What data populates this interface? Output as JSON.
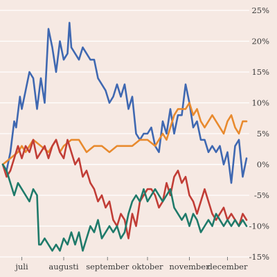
{
  "chart_data": {
    "type": "line",
    "title": "",
    "xlabel": "",
    "ylabel": "",
    "ylim": [
      -15,
      25
    ],
    "y_ticks": [
      -15,
      -10,
      -5,
      0,
      5,
      10,
      15,
      20,
      25
    ],
    "y_tick_labels": [
      "-15%",
      "-10%",
      "-5%",
      "0%",
      "5%",
      "10%",
      "15%",
      "20%",
      "25%"
    ],
    "x_range": [
      0,
      128
    ],
    "x_ticks": [
      {
        "at": 10,
        "label": "juli"
      },
      {
        "at": 32,
        "label": "augusti"
      },
      {
        "at": 55,
        "label": "september"
      },
      {
        "at": 76,
        "label": "oktober"
      },
      {
        "at": 98,
        "label": "november"
      },
      {
        "at": 118,
        "label": "december"
      }
    ],
    "grid": true,
    "legend": "none",
    "series": [
      {
        "color": "#3f68b1",
        "x": [
          0,
          2,
          4,
          6,
          7,
          9,
          10,
          12,
          14,
          16,
          18,
          20,
          22,
          24,
          26,
          28,
          30,
          32,
          34,
          35,
          36,
          38,
          40,
          42,
          44,
          46,
          48,
          50,
          52,
          54,
          56,
          58,
          60,
          62,
          64,
          66,
          68,
          70,
          72,
          74,
          76,
          78,
          80,
          82,
          84,
          86,
          88,
          90,
          92,
          94,
          96,
          98,
          100,
          102,
          104,
          106,
          108,
          110,
          112,
          114,
          116,
          118,
          120,
          122,
          124,
          126,
          128
        ],
        "values": [
          0,
          -1,
          2,
          7,
          6,
          11,
          9,
          12,
          15,
          14,
          9,
          14,
          10,
          22,
          19,
          15,
          20,
          17,
          18,
          23,
          19,
          18,
          17,
          19,
          18,
          17,
          17,
          14,
          13,
          12,
          10,
          11,
          13,
          11,
          13,
          9,
          11,
          5,
          4,
          5,
          5,
          6,
          3,
          2,
          7,
          5,
          9,
          5,
          8,
          8,
          13,
          10,
          6,
          7,
          4,
          4,
          2,
          3,
          2,
          3,
          0,
          2,
          -3,
          3,
          4,
          -2,
          1
        ]
      },
      {
        "color": "#e88a2e",
        "x": [
          0,
          4,
          8,
          10,
          12,
          16,
          20,
          24,
          28,
          30,
          32,
          36,
          40,
          44,
          48,
          52,
          56,
          60,
          64,
          68,
          72,
          76,
          80,
          84,
          86,
          88,
          90,
          92,
          96,
          98,
          100,
          102,
          104,
          106,
          108,
          110,
          112,
          114,
          116,
          118,
          120,
          122,
          124,
          126,
          128
        ],
        "values": [
          0,
          1,
          2,
          3,
          2,
          4,
          3,
          2,
          4,
          2,
          3,
          4,
          4,
          2,
          3,
          3,
          2,
          3,
          3,
          3,
          4,
          4,
          3,
          5,
          4,
          6,
          8,
          9,
          9,
          10,
          8,
          9,
          7,
          6,
          7,
          8,
          7,
          6,
          5,
          7,
          8,
          6,
          5,
          7,
          7
        ]
      },
      {
        "color": "#c13d36",
        "x": [
          0,
          2,
          4,
          6,
          8,
          10,
          12,
          14,
          16,
          18,
          20,
          22,
          24,
          26,
          28,
          30,
          32,
          34,
          36,
          38,
          40,
          42,
          44,
          46,
          48,
          50,
          52,
          54,
          56,
          58,
          60,
          62,
          64,
          66,
          68,
          70,
          72,
          74,
          76,
          78,
          80,
          82,
          84,
          86,
          88,
          90,
          92,
          94,
          96,
          98,
          100,
          102,
          104,
          106,
          108,
          110,
          112,
          114,
          116,
          118,
          120,
          122,
          124,
          126,
          128
        ],
        "values": [
          0,
          -2,
          -1,
          1,
          3,
          1,
          3,
          2,
          4,
          1,
          2,
          3,
          1,
          3,
          4,
          2,
          1,
          4,
          2,
          0,
          1,
          -2,
          -1,
          -3,
          -4,
          -6,
          -5,
          -7,
          -6,
          -9,
          -10,
          -8,
          -9,
          -12,
          -8,
          -10,
          -6,
          -5,
          -4,
          -4,
          -5,
          -7,
          -6,
          -3,
          -5,
          -2,
          -1,
          -3,
          -2,
          -5,
          -6,
          -8,
          -6,
          -4,
          -6,
          -8,
          -9,
          -8,
          -7,
          -9,
          -8,
          -9,
          -10,
          -8,
          -9
        ]
      },
      {
        "color": "#1f7a6a",
        "x": [
          0,
          2,
          4,
          6,
          8,
          10,
          12,
          14,
          16,
          18,
          19,
          20,
          22,
          24,
          26,
          28,
          30,
          32,
          34,
          36,
          38,
          40,
          42,
          44,
          46,
          48,
          50,
          52,
          54,
          56,
          58,
          60,
          62,
          64,
          66,
          68,
          70,
          72,
          74,
          76,
          78,
          80,
          82,
          84,
          86,
          88,
          90,
          92,
          94,
          96,
          98,
          100,
          102,
          104,
          106,
          108,
          110,
          112,
          114,
          116,
          118,
          120,
          122,
          124,
          126,
          128
        ],
        "values": [
          0,
          -1,
          -3,
          -5,
          -3,
          -4,
          -5,
          -6,
          -4,
          -5,
          -13,
          -13,
          -12,
          -13,
          -14,
          -13,
          -14,
          -12,
          -13,
          -11,
          -13,
          -11,
          -14,
          -12,
          -10,
          -11,
          -9,
          -12,
          -11,
          -10,
          -11,
          -10,
          -12,
          -11,
          -8,
          -6,
          -5,
          -6,
          -4,
          -6,
          -5,
          -4,
          -5,
          -6,
          -5,
          -4,
          -7,
          -8,
          -9,
          -8,
          -10,
          -8,
          -9,
          -11,
          -10,
          -9,
          -10,
          -8,
          -9,
          -10,
          -9,
          -10,
          -9,
          -10,
          -9,
          -10
        ]
      }
    ]
  }
}
